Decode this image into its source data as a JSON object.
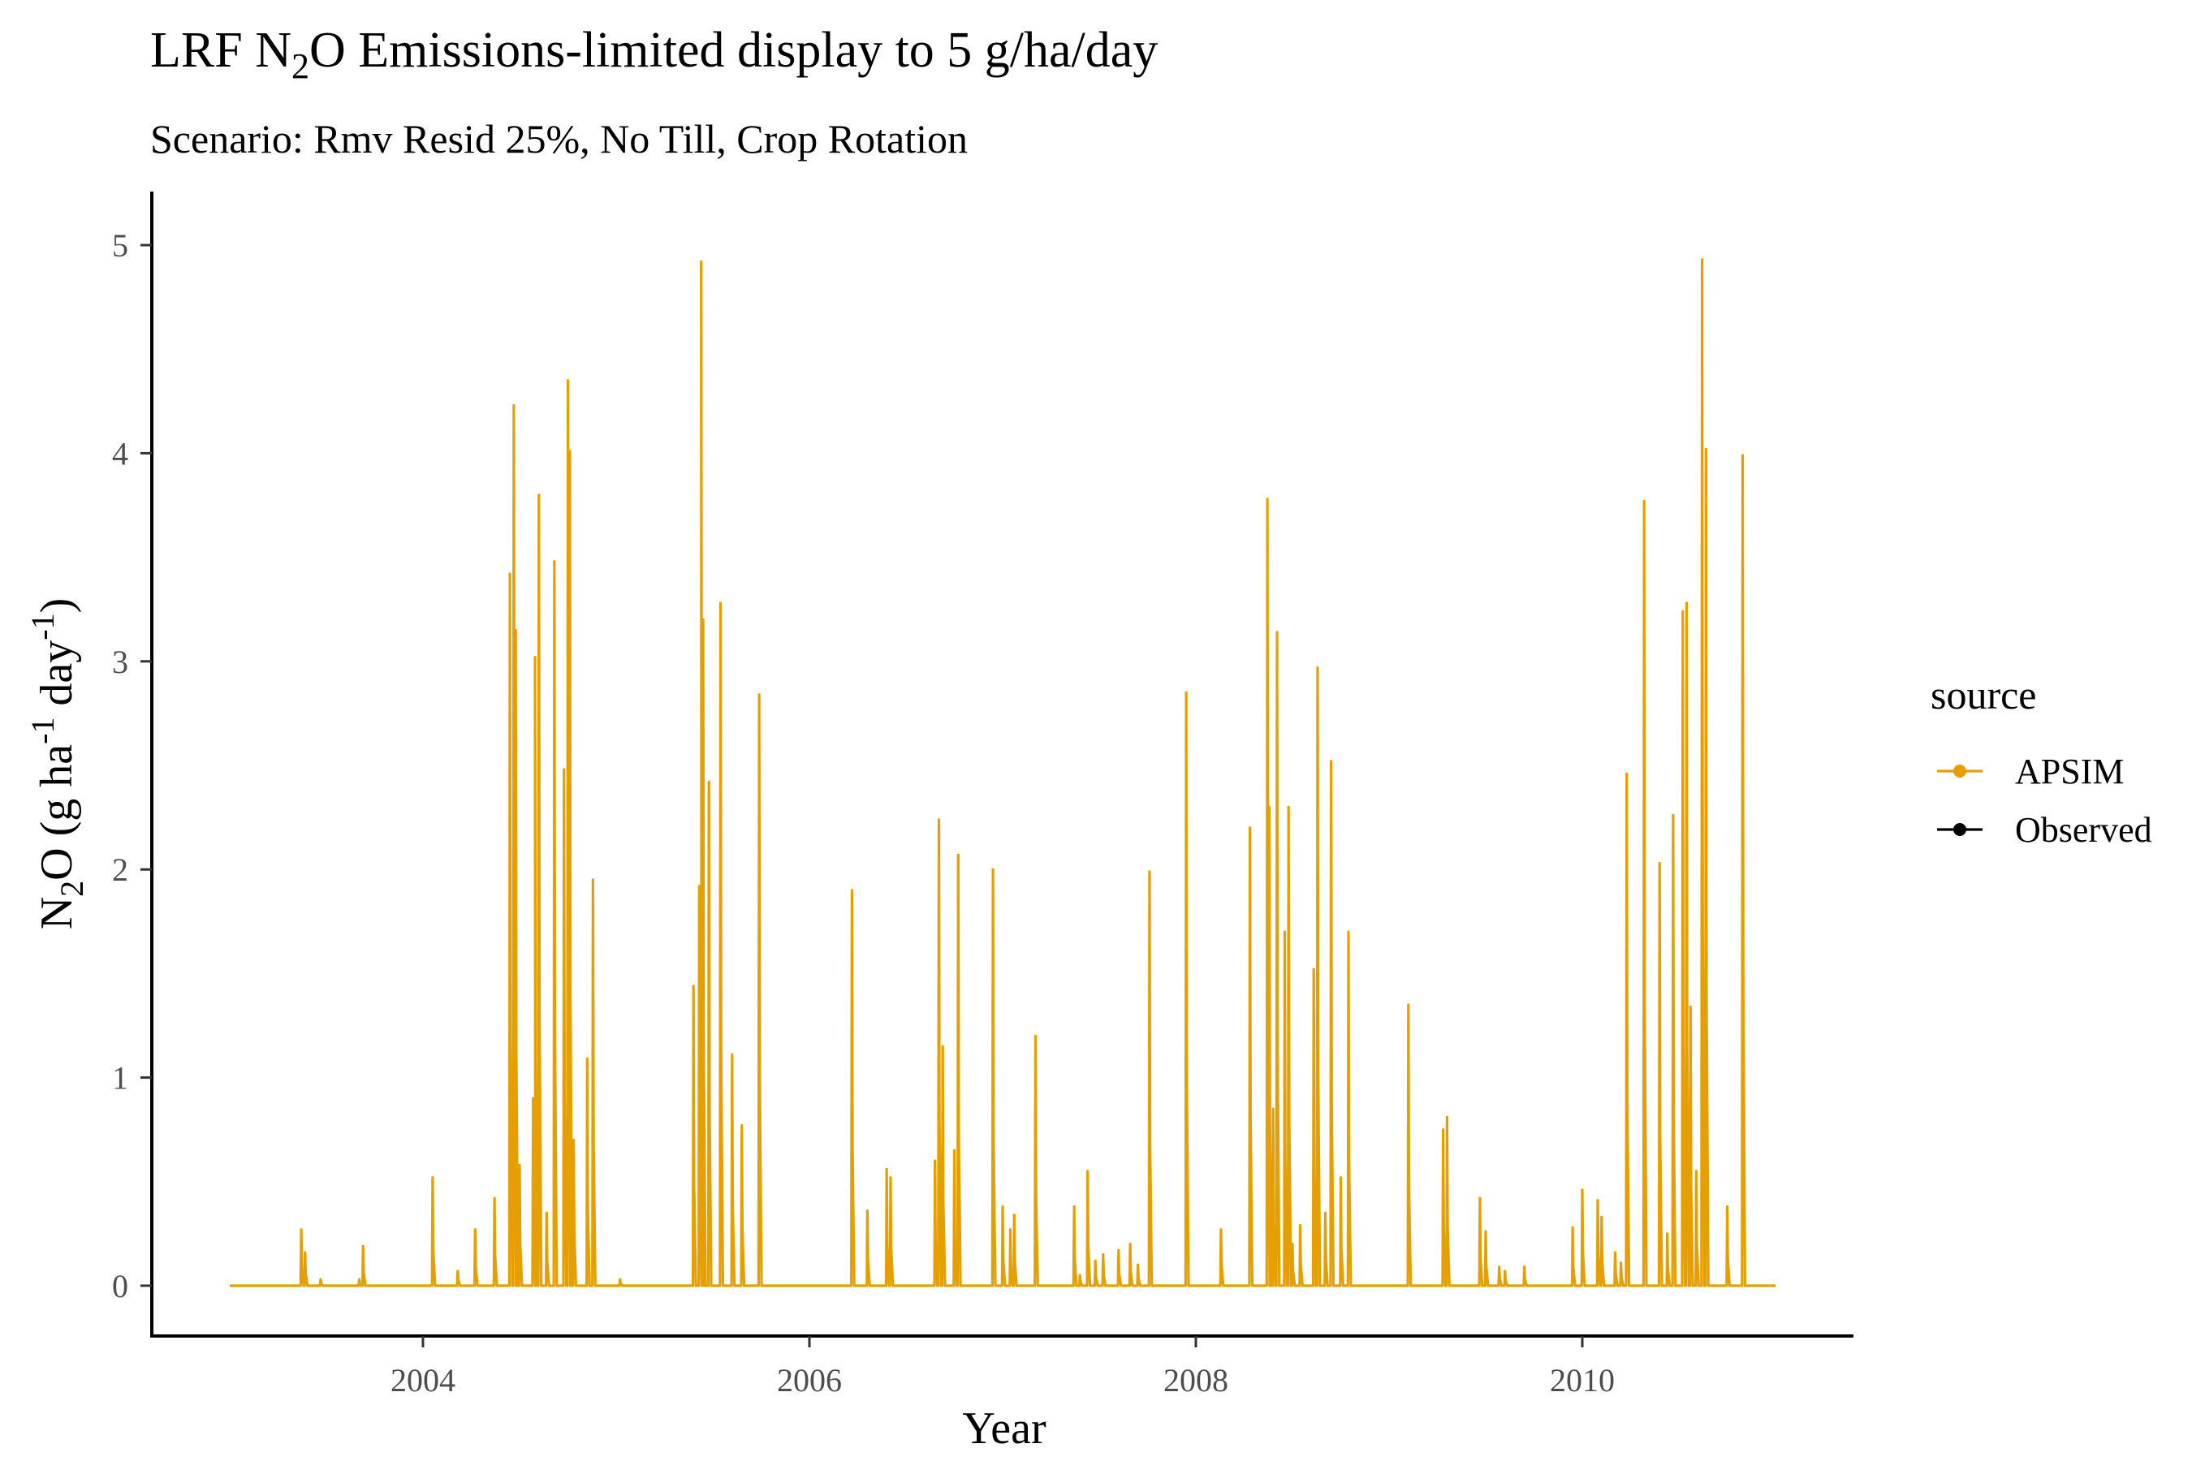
{
  "chart_data": {
    "type": "line",
    "title": {
      "prefix": "LRF N",
      "subscript": "2",
      "suffix": "O Emissions-limited display to 5 g/ha/day"
    },
    "subtitle": "Scenario: Rmv Resid 25%, No Till, Crop Rotation",
    "xlabel": "Year",
    "ylabel": {
      "parts": [
        {
          "text": "N"
        },
        {
          "text": "2",
          "shift": "sub"
        },
        {
          "text": "O (g ha"
        },
        {
          "text": "-1",
          "shift": "super"
        },
        {
          "text": " day"
        },
        {
          "text": "-1",
          "shift": "super"
        },
        {
          "text": ")"
        }
      ]
    },
    "xlim": [
      2003.0,
      2011.0
    ],
    "ylim": [
      0,
      5
    ],
    "x_ticks": [
      2004,
      2006,
      2008,
      2010
    ],
    "x_tick_labels": [
      "2004",
      "2006",
      "2008",
      "2010"
    ],
    "y_ticks": [
      0,
      1,
      2,
      3,
      4,
      5
    ],
    "y_tick_labels": [
      "0",
      "1",
      "2",
      "3",
      "4",
      "5"
    ],
    "grid": false,
    "legend": {
      "title": "source",
      "position": "right",
      "entries": [
        {
          "label": "APSIM",
          "color": "#E69F00"
        },
        {
          "label": "Observed",
          "color": "#000000"
        }
      ]
    },
    "series": [
      {
        "name": "APSIM",
        "color": "#E69F00",
        "baseline": 0,
        "x_start": 2003.0,
        "x_end": 2011.0,
        "peaks": [
          [
            2003.37,
            0.27
          ],
          [
            2003.39,
            0.16
          ],
          [
            2003.47,
            0.03
          ],
          [
            2003.67,
            0.03
          ],
          [
            2003.69,
            0.19
          ],
          [
            2004.05,
            0.52
          ],
          [
            2004.18,
            0.07
          ],
          [
            2004.27,
            0.27
          ],
          [
            2004.37,
            0.42
          ],
          [
            2004.45,
            3.42
          ],
          [
            2004.47,
            4.23
          ],
          [
            2004.48,
            3.15
          ],
          [
            2004.5,
            0.58
          ],
          [
            2004.57,
            0.9
          ],
          [
            2004.58,
            3.02
          ],
          [
            2004.6,
            3.8
          ],
          [
            2004.64,
            0.35
          ],
          [
            2004.68,
            3.48
          ],
          [
            2004.73,
            2.48
          ],
          [
            2004.75,
            4.35
          ],
          [
            2004.76,
            4.01
          ],
          [
            2004.78,
            0.7
          ],
          [
            2004.85,
            1.09
          ],
          [
            2004.88,
            1.95
          ],
          [
            2005.02,
            0.03
          ],
          [
            2005.4,
            1.44
          ],
          [
            2005.43,
            1.92
          ],
          [
            2005.44,
            4.92
          ],
          [
            2005.45,
            3.2
          ],
          [
            2005.48,
            2.42
          ],
          [
            2005.54,
            3.28
          ],
          [
            2005.6,
            1.11
          ],
          [
            2005.65,
            0.77
          ],
          [
            2005.74,
            2.84
          ],
          [
            2006.22,
            1.9
          ],
          [
            2006.3,
            0.36
          ],
          [
            2006.4,
            0.56
          ],
          [
            2006.42,
            0.52
          ],
          [
            2006.65,
            0.6
          ],
          [
            2006.67,
            2.24
          ],
          [
            2006.69,
            1.15
          ],
          [
            2006.75,
            0.65
          ],
          [
            2006.77,
            2.07
          ],
          [
            2006.95,
            2.0
          ],
          [
            2007.0,
            0.38
          ],
          [
            2007.04,
            0.27
          ],
          [
            2007.06,
            0.34
          ],
          [
            2007.17,
            1.2
          ],
          [
            2007.37,
            0.38
          ],
          [
            2007.4,
            0.05
          ],
          [
            2007.44,
            0.55
          ],
          [
            2007.48,
            0.12
          ],
          [
            2007.52,
            0.15
          ],
          [
            2007.6,
            0.17
          ],
          [
            2007.66,
            0.2
          ],
          [
            2007.7,
            0.1
          ],
          [
            2007.76,
            1.99
          ],
          [
            2007.95,
            2.85
          ],
          [
            2008.13,
            0.27
          ],
          [
            2008.28,
            2.2
          ],
          [
            2008.37,
            3.78
          ],
          [
            2008.38,
            2.3
          ],
          [
            2008.4,
            0.85
          ],
          [
            2008.42,
            3.14
          ],
          [
            2008.46,
            1.7
          ],
          [
            2008.48,
            2.3
          ],
          [
            2008.5,
            0.2
          ],
          [
            2008.54,
            0.29
          ],
          [
            2008.61,
            1.52
          ],
          [
            2008.63,
            2.97
          ],
          [
            2008.67,
            0.35
          ],
          [
            2008.7,
            2.52
          ],
          [
            2008.75,
            0.52
          ],
          [
            2008.79,
            1.7
          ],
          [
            2009.1,
            1.35
          ],
          [
            2009.28,
            0.75
          ],
          [
            2009.3,
            0.81
          ],
          [
            2009.47,
            0.42
          ],
          [
            2009.5,
            0.26
          ],
          [
            2009.57,
            0.09
          ],
          [
            2009.6,
            0.07
          ],
          [
            2009.7,
            0.09
          ],
          [
            2009.95,
            0.28
          ],
          [
            2010.0,
            0.46
          ],
          [
            2010.08,
            0.41
          ],
          [
            2010.1,
            0.33
          ],
          [
            2010.17,
            0.16
          ],
          [
            2010.2,
            0.11
          ],
          [
            2010.23,
            2.46
          ],
          [
            2010.32,
            3.77
          ],
          [
            2010.4,
            2.03
          ],
          [
            2010.44,
            0.25
          ],
          [
            2010.47,
            2.26
          ],
          [
            2010.52,
            3.24
          ],
          [
            2010.54,
            3.28
          ],
          [
            2010.56,
            1.34
          ],
          [
            2010.59,
            0.55
          ],
          [
            2010.62,
            4.93
          ],
          [
            2010.64,
            4.02
          ],
          [
            2010.75,
            0.38
          ],
          [
            2010.83,
            3.99
          ]
        ]
      }
    ]
  }
}
